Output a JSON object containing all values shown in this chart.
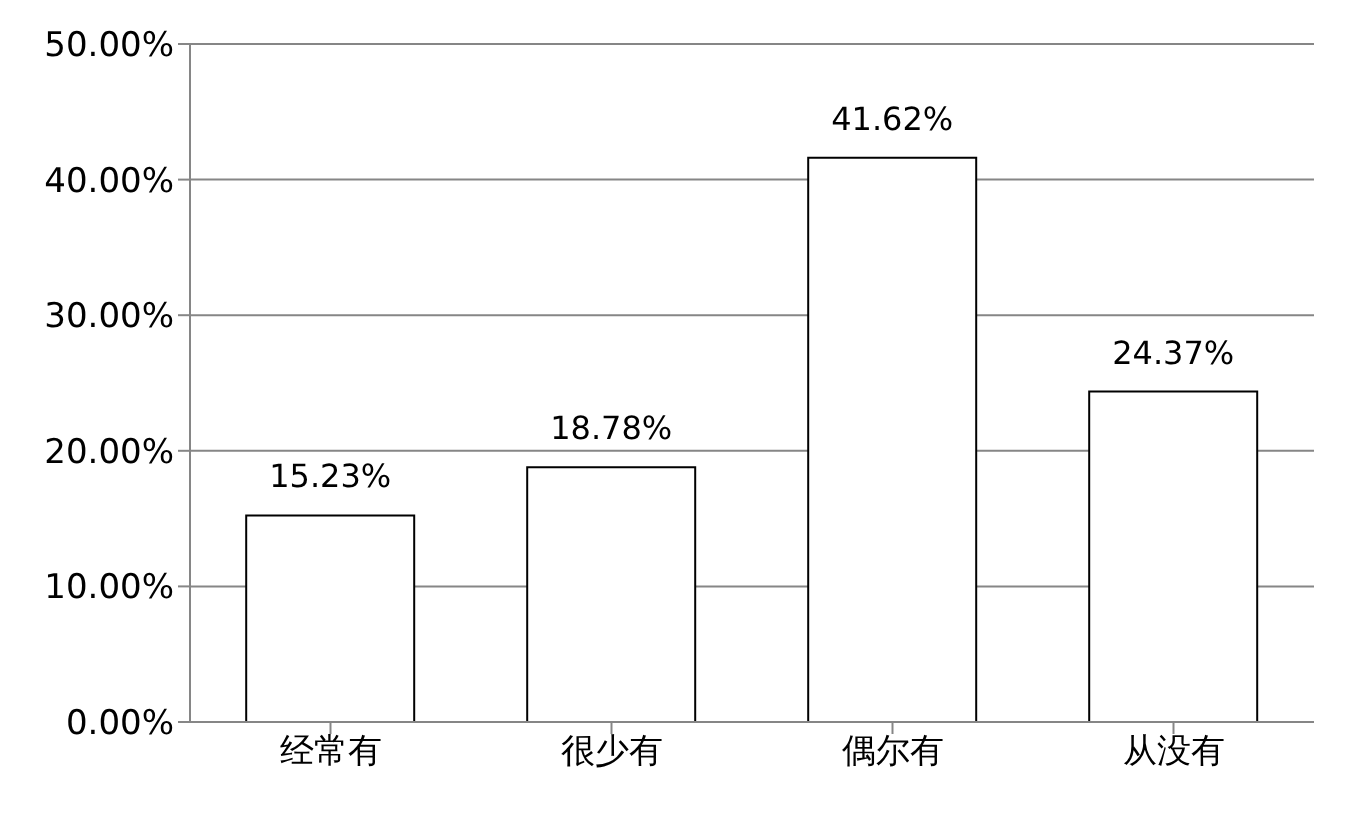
{
  "chart_data": {
    "type": "bar",
    "categories": [
      "经常有",
      "很少有",
      "偶尔有",
      "从没有"
    ],
    "values": [
      15.23,
      18.78,
      41.62,
      24.37
    ],
    "value_labels": [
      "15.23%",
      "18.78%",
      "41.62%",
      "24.37%"
    ],
    "color": "#ffffff",
    "ylim": [
      0,
      50
    ],
    "yticks": [
      {
        "value": 0,
        "label": "0.00%"
      },
      {
        "value": 10,
        "label": "10.00%"
      },
      {
        "value": 20,
        "label": "20.00%"
      },
      {
        "value": 30,
        "label": "30.00%"
      },
      {
        "value": 40,
        "label": "40.00%"
      },
      {
        "value": 50,
        "label": "50.00%"
      }
    ],
    "grid": "y"
  }
}
